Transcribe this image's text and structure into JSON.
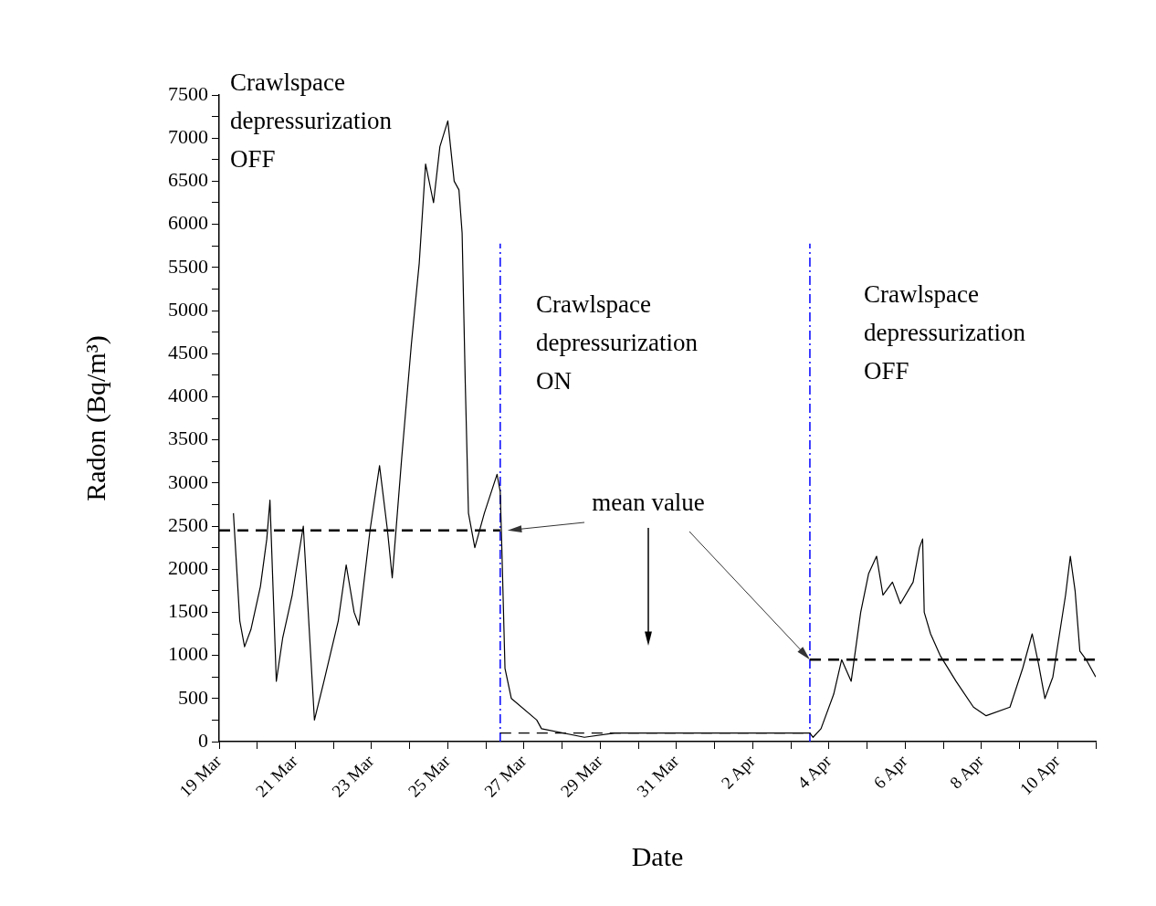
{
  "chart_data": {
    "type": "line",
    "xlabel": "Date",
    "ylabel": "Radon (Bq/m³)",
    "xlim": [
      "--03-19",
      "--04-11"
    ],
    "xticks": [
      {
        "value": "--03-19",
        "label": "19 Mar"
      },
      {
        "value": "--03-20",
        "label": null
      },
      {
        "value": "--03-21",
        "label": "21 Mar"
      },
      {
        "value": "--03-22",
        "label": null
      },
      {
        "value": "--03-23",
        "label": "23 Mar"
      },
      {
        "value": "--03-24",
        "label": null
      },
      {
        "value": "--03-25",
        "label": "25 Mar"
      },
      {
        "value": "--03-26",
        "label": null
      },
      {
        "value": "--03-27",
        "label": "27 Mar"
      },
      {
        "value": "--03-28",
        "label": null
      },
      {
        "value": "--03-29",
        "label": "29 Mar"
      },
      {
        "value": "--03-30",
        "label": null
      },
      {
        "value": "--03-31",
        "label": "31 Mar"
      },
      {
        "value": "--04-01",
        "label": null
      },
      {
        "value": "--04-02",
        "label": "2 Apr"
      },
      {
        "value": "--04-03",
        "label": null
      },
      {
        "value": "--04-04",
        "label": "4 Apr"
      },
      {
        "value": "--04-05",
        "label": null
      },
      {
        "value": "--04-06",
        "label": "6 Apr"
      },
      {
        "value": "--04-07",
        "label": null
      },
      {
        "value": "--04-08",
        "label": "8 Apr"
      },
      {
        "value": "--04-09",
        "label": null
      },
      {
        "value": "--04-10",
        "label": "10 Apr"
      },
      {
        "value": "--04-11",
        "label": null
      }
    ],
    "ylim": [
      0,
      7500
    ],
    "yticks": [
      0,
      {
        "value": 250,
        "label": null
      },
      500,
      {
        "value": 750,
        "label": null
      },
      1000,
      {
        "value": 1250,
        "label": null
      },
      1500,
      {
        "value": 1750,
        "label": null
      },
      2000,
      {
        "value": 2250,
        "label": null
      },
      2500,
      {
        "value": 2750,
        "label": null
      },
      3000,
      {
        "value": 3250,
        "label": null
      },
      3500,
      {
        "value": 3750,
        "label": null
      },
      4000,
      {
        "value": 4250,
        "label": null
      },
      4500,
      {
        "value": 4750,
        "label": null
      },
      5000,
      {
        "value": 5250,
        "label": null
      },
      5500,
      {
        "value": 5750,
        "label": null
      },
      6000,
      {
        "value": 6250,
        "label": null
      },
      6500,
      {
        "value": 6750,
        "label": null
      },
      7000,
      {
        "value": 7250,
        "label": null
      },
      7500
    ],
    "legend": false,
    "marker": "none",
    "series": [
      {
        "color": "#000000",
        "line_style": "solid",
        "x": [
          "--03-19T09:00",
          "--03-19T13:00",
          "--03-19T16:00",
          "--03-19T20:00",
          "--03-20T02:00",
          "--03-20T06:00",
          "--03-20T08:00",
          "--03-20T12:00",
          "--03-20T16:00",
          "--03-20T22:00",
          "--03-21T05:00",
          "--03-21T12:00",
          "--03-21T18:00",
          "--03-22T03:00",
          "--03-22T08:00",
          "--03-22T13:00",
          "--03-22T16:00",
          "--03-22T23:00",
          "--03-23T05:00",
          "--03-23T10:00",
          "--03-23T13:00",
          "--03-23T19:00",
          "--03-24T01:00",
          "--03-24T06:00",
          "--03-24T10:00",
          "--03-24T15:00",
          "--03-24T19:00",
          "--03-25T00:00",
          "--03-25T04:00",
          "--03-25T07:00",
          "--03-25T09:00",
          "--03-25T11:00",
          "--03-25T13:00",
          "--03-25T17:00",
          "--03-25T23:00",
          "--03-26T07:00",
          "--03-26T09:00",
          "--03-26T10:00",
          "--03-26T12:00",
          "--03-26T16:00",
          "--03-27T08:00",
          "--03-27T11:00",
          "--03-28T14:00",
          "--03-29T09:00",
          "--03-31T12:00",
          "--04-02T00:00",
          "--04-03T12:00",
          "--04-03T14:00",
          "--04-03T19:00",
          "--04-04T03:00",
          "--04-04T08:00",
          "--04-04T14:00",
          "--04-04T20:00",
          "--04-05T01:00",
          "--04-05T06:00",
          "--04-05T10:00",
          "--04-05T16:00",
          "--04-05T21:00",
          "--04-06T05:00",
          "--04-06T09:00",
          "--04-06T11:00",
          "--04-06T12:00",
          "--04-06T16:00",
          "--04-06T22:00",
          "--04-07T08:00",
          "--04-07T19:00",
          "--04-08T03:00",
          "--04-08T18:00",
          "--04-09T02:00",
          "--04-09T08:00",
          "--04-09T12:00",
          "--04-09T16:00",
          "--04-09T21:00",
          "--04-10T05:00",
          "--04-10T08:00",
          "--04-10T11:00",
          "--04-10T14:00",
          "--04-10T18:00",
          "--04-11T00:00"
        ],
        "values": [
          2650,
          1400,
          1100,
          1300,
          1800,
          2350,
          2800,
          700,
          1200,
          1700,
          2500,
          250,
          700,
          1400,
          2050,
          1500,
          1350,
          2450,
          3200,
          2450,
          1900,
          3300,
          4600,
          5550,
          6700,
          6250,
          6900,
          7200,
          6500,
          6400,
          5900,
          4150,
          2650,
          2250,
          2650,
          3100,
          2900,
          2250,
          850,
          500,
          250,
          150,
          50,
          100,
          100,
          100,
          100,
          50,
          150,
          550,
          950,
          700,
          1500,
          1950,
          2150,
          1700,
          1850,
          1600,
          1850,
          2250,
          2350,
          1500,
          1250,
          1000,
          700,
          400,
          300,
          400,
          850,
          1250,
          900,
          500,
          750,
          1700,
          2150,
          1750,
          1050,
          950,
          750
        ]
      },
      {
        "color": "#000000",
        "line_style": "dashed",
        "x": [
          "--03-19T00:00",
          "--03-26T09:00"
        ],
        "values": [
          2450,
          2450
        ]
      },
      {
        "color": "#000000",
        "line_style": "dashed",
        "x": [
          "--03-26T09:00",
          "--04-03T12:00"
        ],
        "values": [
          100,
          100
        ]
      },
      {
        "color": "#000000",
        "line_style": "dashed",
        "x": [
          "--04-03T12:00",
          "--04-11T00:00"
        ],
        "values": [
          950,
          950
        ]
      }
    ],
    "ref_lines": [
      {
        "axis": "x",
        "value": "--03-26T09:00",
        "color": "#0000ff",
        "line_style": "dashed"
      },
      {
        "axis": "x",
        "value": "--04-03T12:00",
        "color": "#0000ff",
        "line_style": "dashed"
      }
    ],
    "annotations": [
      "Crawlspace depressurization OFF",
      "Crawlspace depressurization ON",
      "Crawlspace depressurization OFF",
      {
        "text": "mean value",
        "x": "--04-03T12:00",
        "y": 950
      }
    ]
  }
}
